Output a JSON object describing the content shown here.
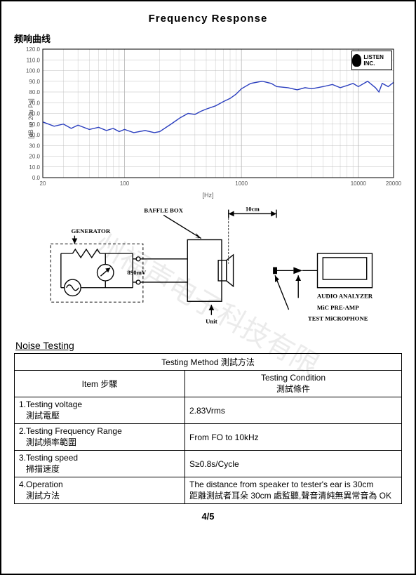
{
  "title": "Frequency   Response",
  "subtitle": "频响曲线",
  "watermark": "州福声电子科技有限",
  "chart": {
    "type": "line",
    "xscale": "log",
    "xlim": [
      20,
      20000
    ],
    "ylim": [
      0,
      120
    ],
    "ytick_step": 10,
    "xticks": [
      20,
      100,
      1000,
      10000,
      20000
    ],
    "xtick_labels": [
      "20",
      "100",
      "1000",
      "10000",
      "20000"
    ],
    "ylabel": "[dB re 20u Pa]",
    "xlabel": "[Hz]",
    "line_color": "#2b3fbf",
    "grid_color": "#bcbcbc",
    "border_color": "#000000",
    "background_color": "#ffffff",
    "legend_label": "LISTEN INC.",
    "series": [
      {
        "x": 20,
        "y": 52
      },
      {
        "x": 25,
        "y": 48
      },
      {
        "x": 30,
        "y": 50
      },
      {
        "x": 35,
        "y": 46
      },
      {
        "x": 40,
        "y": 49
      },
      {
        "x": 50,
        "y": 45
      },
      {
        "x": 60,
        "y": 47
      },
      {
        "x": 70,
        "y": 44
      },
      {
        "x": 80,
        "y": 46
      },
      {
        "x": 90,
        "y": 43
      },
      {
        "x": 100,
        "y": 45
      },
      {
        "x": 120,
        "y": 42
      },
      {
        "x": 150,
        "y": 44
      },
      {
        "x": 180,
        "y": 42
      },
      {
        "x": 200,
        "y": 43
      },
      {
        "x": 250,
        "y": 50
      },
      {
        "x": 300,
        "y": 56
      },
      {
        "x": 350,
        "y": 60
      },
      {
        "x": 400,
        "y": 59
      },
      {
        "x": 450,
        "y": 62
      },
      {
        "x": 500,
        "y": 64
      },
      {
        "x": 600,
        "y": 67
      },
      {
        "x": 700,
        "y": 71
      },
      {
        "x": 800,
        "y": 74
      },
      {
        "x": 900,
        "y": 78
      },
      {
        "x": 1000,
        "y": 83
      },
      {
        "x": 1200,
        "y": 88
      },
      {
        "x": 1500,
        "y": 90
      },
      {
        "x": 1800,
        "y": 88
      },
      {
        "x": 2000,
        "y": 85
      },
      {
        "x": 2500,
        "y": 84
      },
      {
        "x": 3000,
        "y": 82
      },
      {
        "x": 3500,
        "y": 84
      },
      {
        "x": 4000,
        "y": 83
      },
      {
        "x": 5000,
        "y": 85
      },
      {
        "x": 6000,
        "y": 87
      },
      {
        "x": 7000,
        "y": 84
      },
      {
        "x": 8000,
        "y": 86
      },
      {
        "x": 9000,
        "y": 88
      },
      {
        "x": 10000,
        "y": 85
      },
      {
        "x": 12000,
        "y": 90
      },
      {
        "x": 14000,
        "y": 84
      },
      {
        "x": 15000,
        "y": 80
      },
      {
        "x": 16000,
        "y": 88
      },
      {
        "x": 18000,
        "y": 85
      },
      {
        "x": 20000,
        "y": 89
      }
    ]
  },
  "diagram": {
    "labels": {
      "baffle": "BAFFLE BOX",
      "generator": "GENERATOR",
      "voltage": "890mV",
      "distance": "10cm",
      "unit": "Unit",
      "analyzer": "AUDIO ANALYZER",
      "preamp": "MiC PRE-AMP",
      "mic": "TEST MiCROPHONE"
    },
    "line_color": "#000000",
    "font_size": 9
  },
  "noise": {
    "section_title": "Noise  Testing",
    "header_full": "Testing Method 測試方法",
    "col_item": "Item 步驟",
    "col_cond": "Testing Condition",
    "col_cond_sub": "測試條件",
    "rows": [
      {
        "item_en": "1.Testing  voltage",
        "item_zh": "測試電壓",
        "cond": "2.83Vrms"
      },
      {
        "item_en": "2.Testing Frequency Range",
        "item_zh": "測試頻率範圍",
        "cond": "From FO to 10kHz"
      },
      {
        "item_en": "3.Testing speed",
        "item_zh": "掃描速度",
        "cond": "S≥0.8s/Cycle"
      },
      {
        "item_en": "4.Operation",
        "item_zh": "測試方法",
        "cond": "The distance from speaker to tester's ear is 30cm\n距離測試者耳朵 30cm 處監聽,聲音清純無異常音為 OK"
      }
    ]
  },
  "page_number": "4/5"
}
